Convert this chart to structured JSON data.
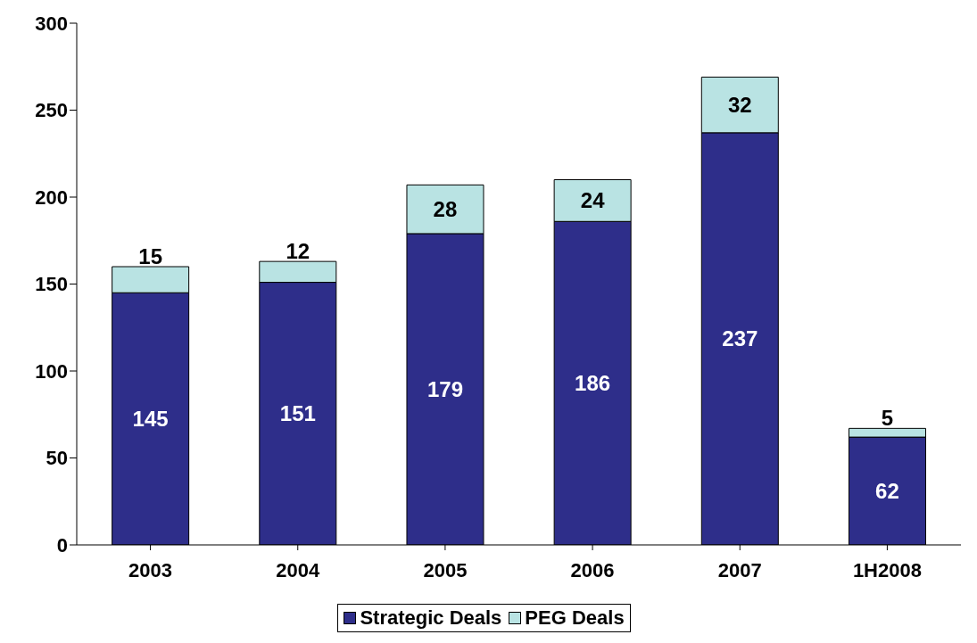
{
  "chart_data": {
    "type": "bar",
    "stacked": true,
    "categories": [
      "2003",
      "2004",
      "2005",
      "2006",
      "2007",
      "1H2008"
    ],
    "series": [
      {
        "name": "Strategic Deals",
        "color": "#2e2e8a",
        "values": [
          145,
          151,
          179,
          186,
          237,
          62
        ]
      },
      {
        "name": "PEG Deals",
        "color": "#b9e3e3",
        "values": [
          15,
          12,
          28,
          24,
          32,
          5
        ]
      }
    ],
    "ylim": [
      0,
      300
    ],
    "yticks": [
      0,
      50,
      100,
      150,
      200,
      250,
      300
    ],
    "data_labels": true,
    "grid": false,
    "legend": "bottom"
  }
}
